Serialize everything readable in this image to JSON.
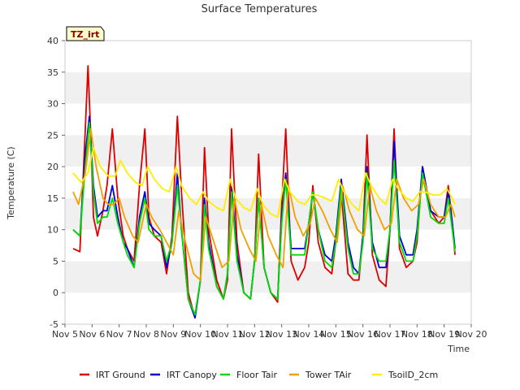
{
  "chart_data": {
    "type": "line",
    "title": "Surface Temperatures",
    "xlabel": "Time",
    "ylabel": "Temperature (C)",
    "badge": "TZ_irt",
    "ylim": [
      -5,
      40
    ],
    "yticks": [
      -5,
      0,
      5,
      10,
      15,
      20,
      25,
      30,
      35,
      40
    ],
    "xlim": [
      5,
      20
    ],
    "xticks": [
      5,
      6,
      7,
      8,
      9,
      10,
      11,
      12,
      13,
      14,
      15,
      16,
      17,
      18,
      19,
      20
    ],
    "xtick_labels": [
      "Nov 5",
      "Nov 6",
      "Nov 7",
      "Nov 8",
      "Nov 9",
      "Nov 10",
      "Nov 11",
      "Nov 12",
      "Nov 13",
      "Nov 14",
      "Nov 15",
      "Nov 16",
      "Nov 17",
      "Nov 18",
      "Nov 19",
      "Nov 20"
    ],
    "grid": "horizontal bands",
    "legend_position": "bottom",
    "series": [
      {
        "name": "IRT Ground",
        "color": "#dd0000",
        "x": [
          5.3,
          5.55,
          5.75,
          5.85,
          5.95,
          6.05,
          6.2,
          6.4,
          6.55,
          6.75,
          6.95,
          7.15,
          7.3,
          7.55,
          7.75,
          7.95,
          8.1,
          8.3,
          8.55,
          8.75,
          8.95,
          9.15,
          9.3,
          9.55,
          9.8,
          10.0,
          10.15,
          10.3,
          10.6,
          10.85,
          11.0,
          11.15,
          11.35,
          11.6,
          11.85,
          12.0,
          12.15,
          12.35,
          12.6,
          12.85,
          13.0,
          13.15,
          13.35,
          13.6,
          13.85,
          14.0,
          14.15,
          14.35,
          14.6,
          14.85,
          15.0,
          15.2,
          15.45,
          15.65,
          15.85,
          16.0,
          16.15,
          16.35,
          16.6,
          16.85,
          17.0,
          17.15,
          17.35,
          17.6,
          17.85,
          18.0,
          18.2,
          18.5,
          18.8,
          19.0,
          19.15,
          19.3,
          19.4
        ],
        "y": [
          7,
          6.5,
          26,
          36,
          25,
          12,
          9,
          13,
          17,
          26,
          15,
          9,
          7,
          5,
          17,
          26,
          12,
          9,
          8,
          3,
          9,
          28,
          16,
          0,
          -4,
          2,
          23,
          10,
          2,
          -1,
          2,
          26,
          8,
          0,
          -1,
          5,
          22,
          4,
          0,
          -1.5,
          14,
          26,
          5,
          2,
          4,
          8,
          17,
          8,
          4,
          3,
          8,
          16,
          3,
          2,
          2,
          9,
          25,
          6,
          2,
          1,
          10,
          26,
          7,
          4,
          5,
          8,
          20,
          13,
          11,
          12,
          17,
          11,
          6
        ]
      },
      {
        "name": "IRT Canopy",
        "color": "#0000dd",
        "x": [
          5.3,
          5.55,
          5.75,
          5.9,
          6.05,
          6.2,
          6.4,
          6.55,
          6.75,
          6.95,
          7.15,
          7.3,
          7.55,
          7.75,
          7.95,
          8.1,
          8.3,
          8.55,
          8.75,
          8.95,
          9.15,
          9.3,
          9.55,
          9.8,
          10.0,
          10.15,
          10.3,
          10.6,
          10.85,
          11.0,
          11.15,
          11.35,
          11.6,
          11.85,
          12.0,
          12.15,
          12.35,
          12.6,
          12.85,
          13.0,
          13.15,
          13.35,
          13.6,
          13.85,
          14.0,
          14.15,
          14.35,
          14.6,
          14.85,
          15.0,
          15.2,
          15.45,
          15.65,
          15.85,
          16.0,
          16.15,
          16.35,
          16.6,
          16.85,
          17.0,
          17.15,
          17.35,
          17.6,
          17.85,
          18.0,
          18.2,
          18.5,
          18.8,
          19.0,
          19.15,
          19.3,
          19.4
        ],
        "y": [
          10,
          9,
          22,
          28,
          17,
          12,
          13,
          13,
          17,
          12,
          8,
          7,
          4,
          12,
          16,
          11,
          10,
          9,
          4,
          8,
          19,
          10,
          -1,
          -4,
          2,
          15,
          8,
          1,
          -1,
          3,
          17,
          6,
          0,
          -1,
          5,
          15,
          4,
          0,
          -1,
          12,
          19,
          7,
          7,
          7,
          11,
          16,
          10,
          6,
          5,
          9,
          18,
          8,
          4,
          3,
          9,
          20,
          8,
          4,
          4,
          10,
          24,
          9,
          6,
          6,
          10,
          20,
          13,
          12,
          12,
          16,
          11,
          7
        ]
      },
      {
        "name": "Floor Tair",
        "color": "#00dd00",
        "x": [
          5.3,
          5.55,
          5.75,
          5.9,
          6.05,
          6.2,
          6.4,
          6.55,
          6.75,
          6.95,
          7.15,
          7.3,
          7.55,
          7.75,
          7.95,
          8.1,
          8.3,
          8.55,
          8.75,
          8.95,
          9.15,
          9.3,
          9.55,
          9.8,
          10.0,
          10.15,
          10.3,
          10.6,
          10.85,
          11.0,
          11.15,
          11.35,
          11.6,
          11.85,
          12.0,
          12.15,
          12.35,
          12.6,
          12.85,
          13.0,
          13.15,
          13.35,
          13.6,
          13.85,
          14.0,
          14.15,
          14.35,
          14.6,
          14.85,
          15.0,
          15.2,
          15.45,
          15.65,
          15.85,
          16.0,
          16.15,
          16.35,
          16.6,
          16.85,
          17.0,
          17.15,
          17.35,
          17.6,
          17.85,
          18.0,
          18.2,
          18.5,
          18.8,
          19.0,
          19.15,
          19.3,
          19.4
        ],
        "y": [
          10,
          9,
          20,
          27,
          16,
          11,
          12,
          12,
          15,
          11,
          8,
          6,
          4,
          11,
          15,
          10,
          9,
          9,
          5,
          8,
          17,
          10,
          -1,
          -3.5,
          2,
          14,
          7,
          1,
          -1,
          3,
          16,
          5,
          0,
          -1,
          5,
          15,
          4,
          0,
          -1,
          11,
          18,
          6,
          6,
          6,
          11,
          16,
          10,
          5,
          4,
          8,
          17,
          7,
          3,
          3,
          8,
          19,
          7,
          5,
          5,
          10,
          21,
          8,
          5,
          5,
          9,
          19,
          12,
          11,
          11,
          15,
          10,
          6.5
        ]
      },
      {
        "name": "Tower TAir",
        "color": "#f0a000",
        "x": [
          5.3,
          5.5,
          5.75,
          5.95,
          6.15,
          6.4,
          6.6,
          6.8,
          7.0,
          7.2,
          7.5,
          7.7,
          8.0,
          8.2,
          8.5,
          8.75,
          9.0,
          9.2,
          9.45,
          9.75,
          10.0,
          10.2,
          10.5,
          10.8,
          11.05,
          11.25,
          11.5,
          11.8,
          12.05,
          12.25,
          12.5,
          12.8,
          13.05,
          13.25,
          13.5,
          13.8,
          14.05,
          14.25,
          14.5,
          14.8,
          15.05,
          15.25,
          15.5,
          15.8,
          16.05,
          16.25,
          16.5,
          16.8,
          17.05,
          17.25,
          17.5,
          17.8,
          18.05,
          18.25,
          18.5,
          18.8,
          19.05,
          19.25,
          19.4
        ],
        "y": [
          16,
          14,
          19,
          26,
          20,
          15,
          14,
          14,
          15,
          12,
          9,
          8,
          14,
          12,
          10,
          8,
          6,
          13,
          8,
          3,
          2,
          12,
          8,
          4,
          5,
          15,
          10,
          7,
          5,
          14,
          9,
          6,
          4,
          17,
          12,
          9,
          11,
          15,
          13,
          10,
          8,
          17,
          13,
          10,
          9,
          17,
          13,
          10,
          11,
          18,
          15,
          13,
          14,
          18,
          14,
          12,
          12,
          14,
          12
        ]
      },
      {
        "name": "TsoilD_2cm",
        "color": "#ffee00",
        "x": [
          5.3,
          5.6,
          5.85,
          6.05,
          6.3,
          6.6,
          6.85,
          7.05,
          7.3,
          7.6,
          7.85,
          8.05,
          8.3,
          8.6,
          8.85,
          9.1,
          9.3,
          9.6,
          9.85,
          10.1,
          10.3,
          10.6,
          10.85,
          11.1,
          11.3,
          11.6,
          11.85,
          12.1,
          12.3,
          12.6,
          12.85,
          13.1,
          13.3,
          13.6,
          13.85,
          14.1,
          14.3,
          14.6,
          14.85,
          15.1,
          15.3,
          15.6,
          15.85,
          16.1,
          16.3,
          16.6,
          16.85,
          17.1,
          17.3,
          17.6,
          17.85,
          18.1,
          18.3,
          18.6,
          18.85,
          19.1,
          19.3,
          19.4
        ],
        "y": [
          19,
          17.5,
          19,
          23,
          20,
          18.5,
          18.5,
          21,
          19,
          17.5,
          17,
          20,
          18,
          16.5,
          16,
          20,
          17,
          15,
          14,
          16,
          14.5,
          13.5,
          13,
          18,
          15,
          13.5,
          13,
          16.5,
          14,
          12.5,
          12,
          18,
          16,
          14.5,
          14,
          15.5,
          15.5,
          15,
          14.5,
          18,
          16,
          14,
          13,
          19,
          17,
          15,
          14,
          18,
          16.5,
          15,
          14.5,
          16,
          16,
          15.5,
          15.5,
          16.5,
          15,
          14
        ]
      }
    ]
  }
}
